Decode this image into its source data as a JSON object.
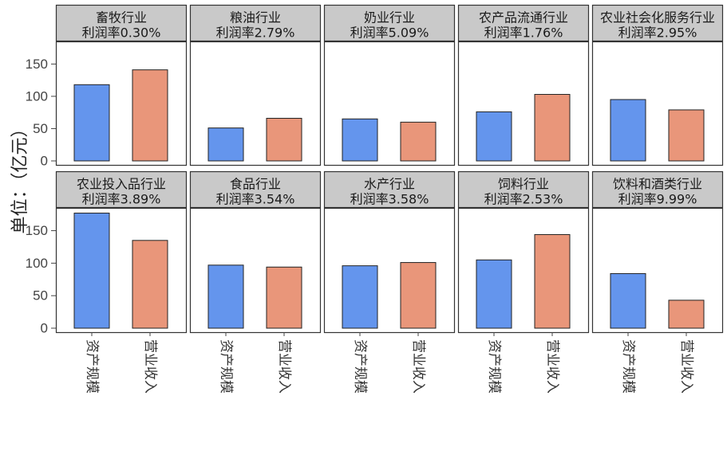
{
  "chart_data": {
    "type": "bar",
    "ylabel": "单位：（亿元）",
    "ylim": [
      0,
      185
    ],
    "yticks": [
      0,
      50,
      100,
      150
    ],
    "categories": [
      "资产规模",
      "营业收入"
    ],
    "colors": {
      "资产规模": "#6495ED",
      "营业收入": "#E9967A"
    },
    "panels": [
      {
        "name": "畜牧行业",
        "subtitle": "利润率0.30%",
        "values": [
          118,
          141
        ]
      },
      {
        "name": "粮油行业",
        "subtitle": "利润率2.79%",
        "values": [
          51,
          66
        ]
      },
      {
        "name": "奶业行业",
        "subtitle": "利润率5.09%",
        "values": [
          65,
          60
        ]
      },
      {
        "name": "农产品流通行业",
        "subtitle": "利润率1.76%",
        "values": [
          76,
          103
        ]
      },
      {
        "name": "农业社会化服务行业",
        "subtitle": "利润率2.95%",
        "values": [
          95,
          79
        ]
      },
      {
        "name": "农业投入品行业",
        "subtitle": "利润率3.89%",
        "values": [
          177,
          135
        ]
      },
      {
        "name": "食品行业",
        "subtitle": "利润率3.54%",
        "values": [
          97,
          94
        ]
      },
      {
        "name": "水产行业",
        "subtitle": "利润率3.58%",
        "values": [
          96,
          101
        ]
      },
      {
        "name": "饲料行业",
        "subtitle": "利润率2.53%",
        "values": [
          105,
          144
        ]
      },
      {
        "name": "饮料和酒类行业",
        "subtitle": "利润率9.99%",
        "values": [
          84,
          43
        ]
      }
    ]
  }
}
